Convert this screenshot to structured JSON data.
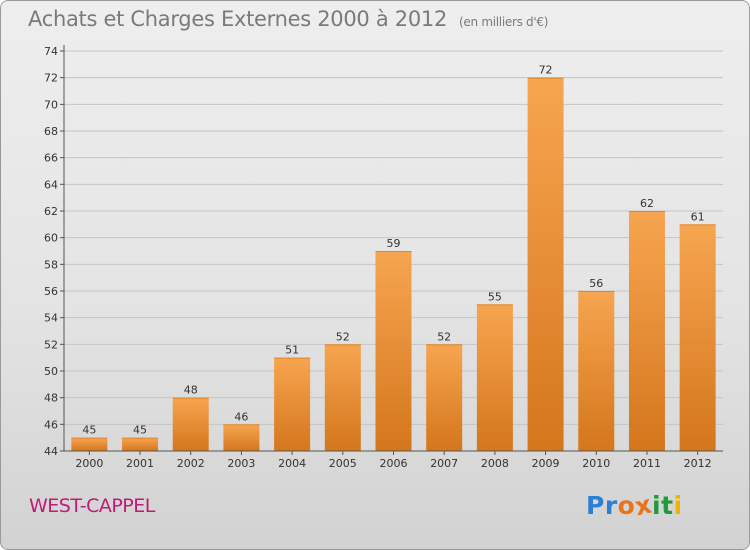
{
  "page": {
    "title": "Achats et Charges Externes 2000 à 2012",
    "unit_note": "(en milliers d'€)",
    "place": "WEST-CAPPEL",
    "logo": {
      "letters": [
        "P",
        "r",
        "o",
        "x",
        "i",
        "t",
        "i"
      ],
      "colors": [
        "#2b7fd4",
        "#2b7fd4",
        "#e8741c",
        "#e8741c",
        "#1f9b3a",
        "#1f9b3a",
        "#f0b400"
      ]
    }
  },
  "chart_data": {
    "type": "bar",
    "title": "Achats et Charges Externes 2000 à 2012",
    "subtitle": "(en milliers d'€)",
    "xlabel": "",
    "ylabel": "",
    "categories": [
      "2000",
      "2001",
      "2002",
      "2003",
      "2004",
      "2005",
      "2006",
      "2007",
      "2008",
      "2009",
      "2010",
      "2011",
      "2012"
    ],
    "values": [
      45,
      45,
      48,
      46,
      51,
      52,
      59,
      52,
      55,
      72,
      56,
      62,
      61
    ],
    "ylim": [
      44,
      74
    ],
    "yticks": [
      44,
      46,
      48,
      50,
      52,
      54,
      56,
      58,
      60,
      62,
      64,
      66,
      68,
      70,
      72,
      74
    ],
    "grid": true,
    "bar_color_top": "#f7a550",
    "bar_color_bottom": "#d4761c"
  }
}
